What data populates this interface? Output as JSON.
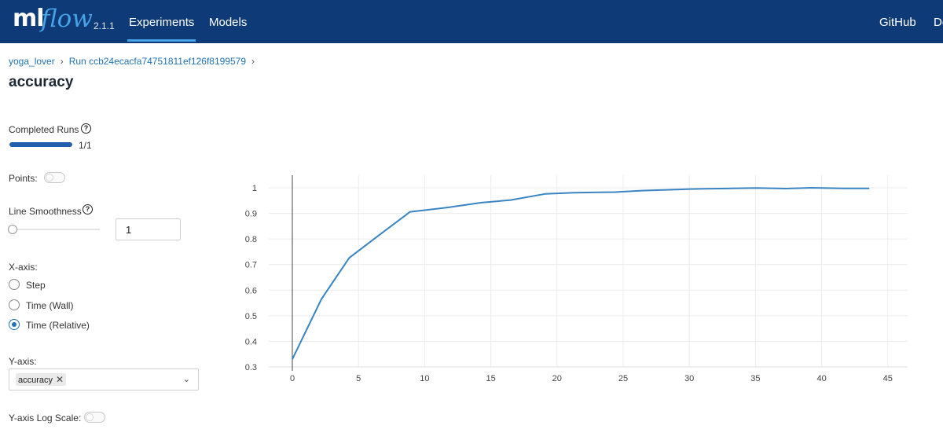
{
  "header": {
    "logo": {
      "ml": "ml",
      "flow": "flow",
      "version": "2.1.1"
    },
    "nav": {
      "experiments": "Experiments",
      "models": "Models",
      "github": "GitHub",
      "docs": "Docs"
    },
    "active": "Experiments"
  },
  "breadcrumb": {
    "experiment": "yoga_lover",
    "run": "Run ccb24ecacfa74751811ef126f8199579",
    "separator": "›"
  },
  "page_title": "accuracy",
  "controls": {
    "completed_runs_label": "Completed Runs",
    "completed_runs_value": "1/1",
    "completed_runs_fraction": 1.0,
    "points_label": "Points:",
    "points_on": false,
    "line_smoothness_label": "Line Smoothness",
    "line_smoothness_value": "1",
    "xaxis_label": "X-axis:",
    "xaxis_options": [
      "Step",
      "Time (Wall)",
      "Time (Relative)"
    ],
    "xaxis_selected": "Time (Relative)",
    "yaxis_label": "Y-axis:",
    "yaxis_selected_tag": "accuracy",
    "yaxis_remove_symbol": "✕",
    "yaxis_log_label": "Y-axis Log Scale:",
    "yaxis_log_on": false
  },
  "help_symbol": "?",
  "dropdown_symbol": "⌄",
  "colors": {
    "header": "#0e3a78",
    "accent": "#48a3e6",
    "link": "#2272b4",
    "line": "#3a84c1"
  },
  "chart_data": {
    "type": "line",
    "xlim": [
      0,
      46
    ],
    "ylim": [
      0.3,
      1.0
    ],
    "xticks": [
      0,
      5,
      10,
      15,
      20,
      25,
      30,
      35,
      40,
      45
    ],
    "yticks": [
      0.3,
      0.4,
      0.5,
      0.6,
      0.7,
      0.8,
      0.9,
      1
    ],
    "grid": true,
    "series": [
      {
        "x": [
          0,
          2.2,
          4.3,
          6.5,
          8.9,
          11.6,
          14.3,
          16.5,
          19.1,
          21.3,
          24.4,
          26.4,
          30.1,
          32.3,
          35.1,
          37.3,
          39.3,
          41.6,
          43.6
        ],
        "y": [
          0.33,
          0.565,
          0.726,
          0.813,
          0.906,
          0.922,
          0.942,
          0.952,
          0.976,
          0.981,
          0.983,
          0.989,
          0.995,
          0.997,
          0.999,
          0.997,
          1.0,
          0.998,
          0.998
        ]
      }
    ]
  }
}
